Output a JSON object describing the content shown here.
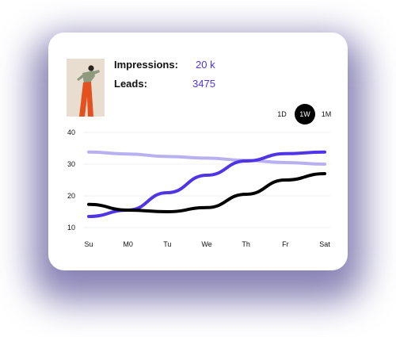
{
  "stats": {
    "impressions_label": "Impressions:",
    "impressions_value": "20 k",
    "leads_label": "Leads:",
    "leads_value": "3475"
  },
  "range": {
    "options": [
      "1D",
      "1W",
      "1M"
    ],
    "selected": "1W"
  },
  "colors": {
    "accent": "#4f35e6",
    "light_series": "#b8b0f0",
    "dark_series": "#000000"
  },
  "chart_data": {
    "type": "line",
    "categories": [
      "Su",
      "M0",
      "Tu",
      "We",
      "Th",
      "Fr",
      "Sat"
    ],
    "y_ticks": [
      10,
      20,
      30,
      40
    ],
    "ylim": [
      10,
      40
    ],
    "grid": true,
    "series": [
      {
        "values": [
          33.8,
          33.2,
          32.4,
          31.9,
          31.2,
          30.5,
          30.0
        ],
        "color": "#b8b0f0"
      },
      {
        "values": [
          13.5,
          15.5,
          21,
          26.5,
          31,
          33.3,
          33.8
        ],
        "color": "#4f35e6"
      },
      {
        "values": [
          17.3,
          15.5,
          15.0,
          16.3,
          20.5,
          25,
          27
        ],
        "color": "#000000"
      }
    ]
  }
}
